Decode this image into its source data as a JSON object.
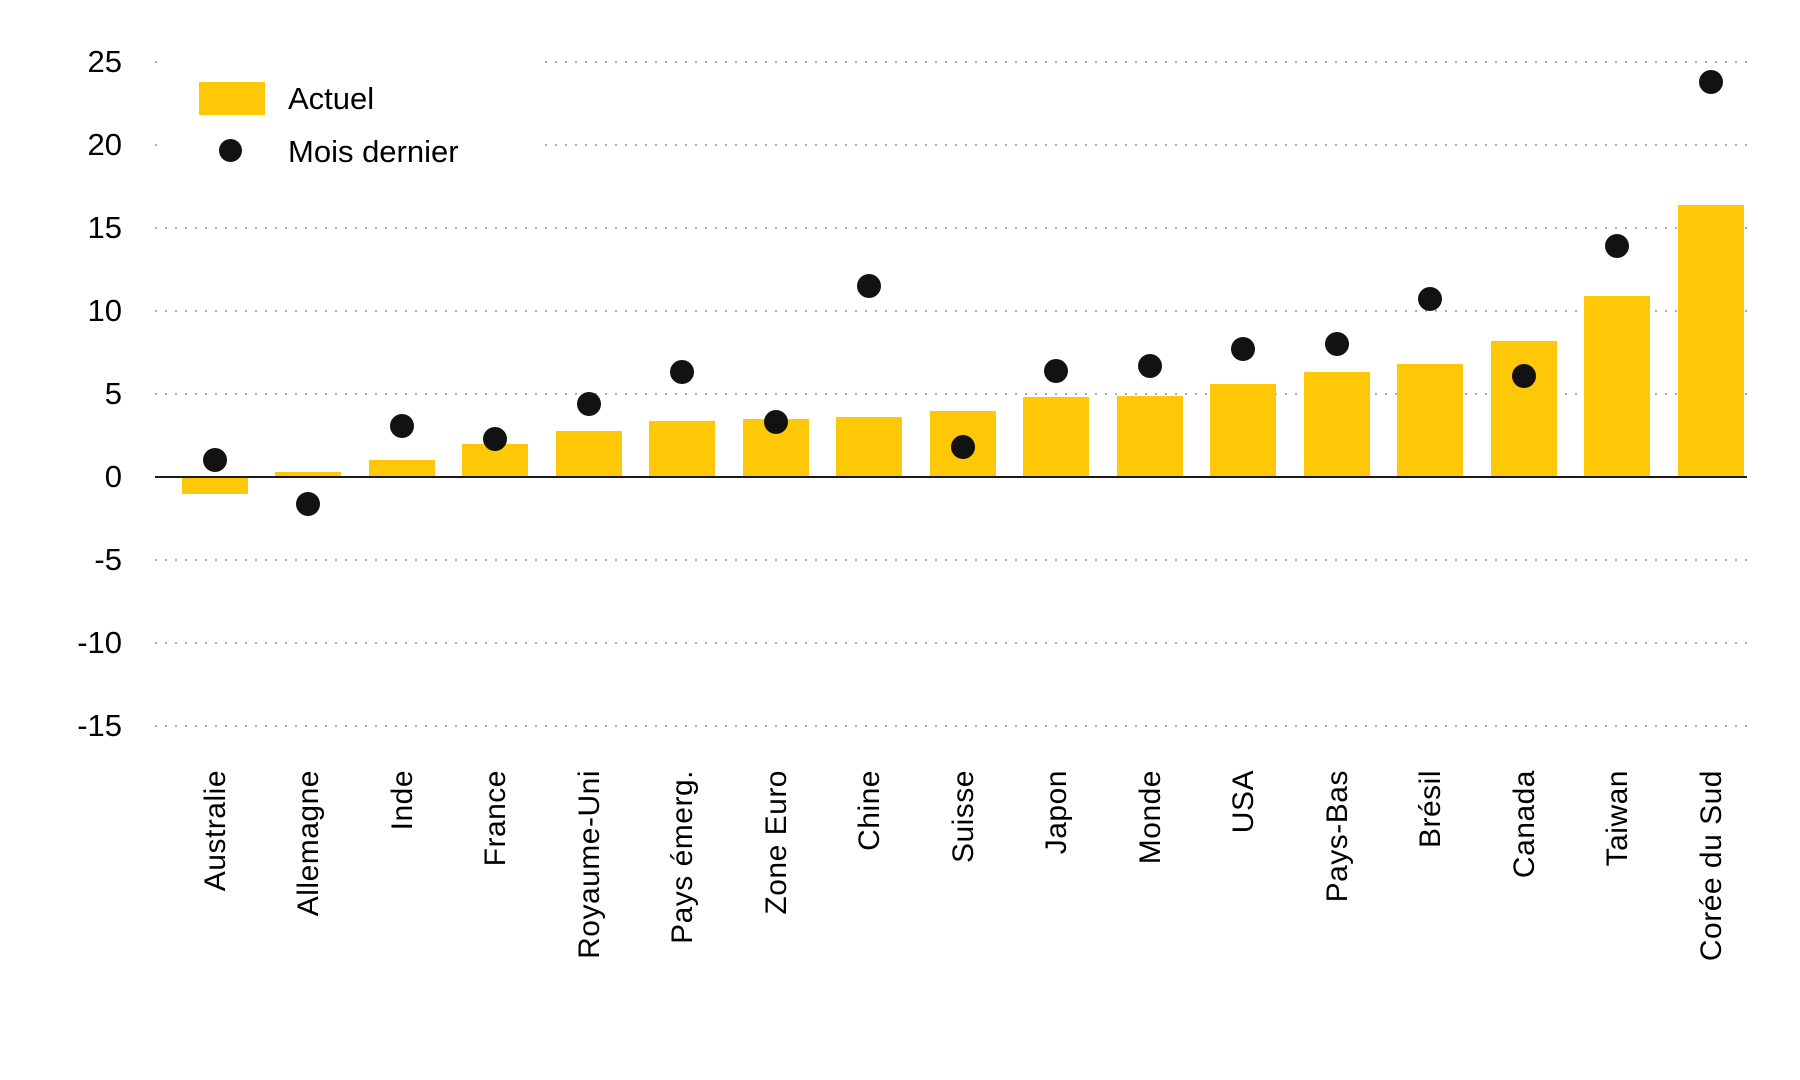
{
  "chart_data": {
    "type": "bar",
    "title": "",
    "xlabel": "",
    "ylabel": "",
    "categories": [
      "Australie",
      "Allemagne",
      "Inde",
      "France",
      "Royaume-Uni",
      "Pays émerg.",
      "Zone Euro",
      "Chine",
      "Suisse",
      "Japon",
      "Monde",
      "USA",
      "Pays-Bas",
      "Brésil",
      "Canada",
      "Taiwan",
      "Corée du Sud"
    ],
    "series": [
      {
        "name": "Actuel",
        "type": "bar",
        "color": "#FEC806",
        "values": [
          -1.0,
          0.3,
          1.0,
          2.0,
          2.8,
          3.4,
          3.5,
          3.6,
          4.0,
          4.8,
          4.9,
          5.6,
          6.3,
          6.8,
          8.2,
          10.9,
          16.4
        ]
      },
      {
        "name": "Mois dernier",
        "type": "scatter",
        "color": "#121212",
        "values": [
          1.0,
          -1.6,
          3.1,
          2.3,
          4.4,
          6.3,
          3.3,
          11.5,
          1.8,
          6.4,
          6.7,
          7.7,
          8.0,
          10.7,
          6.1,
          13.9,
          23.8
        ]
      }
    ],
    "ylim": [
      -17.5,
      27
    ],
    "yticks": [
      25,
      20,
      15,
      10,
      5,
      0,
      -5,
      -10,
      -15
    ],
    "ytick_labels": [
      "25",
      "20",
      "15",
      "10",
      "5",
      "0",
      "-5",
      "-10",
      "-15"
    ],
    "grid": "horizontal-dotted",
    "legend_position": "top-left"
  },
  "legend": {
    "actuel_label": "Actuel",
    "mois_dernier_label": "Mois dernier"
  },
  "colors": {
    "bar": "#FEC806",
    "dot": "#121212",
    "grid_dots": "#ADADAD",
    "axis_line": "#1A1A1A",
    "background": "#FFFFFF"
  }
}
